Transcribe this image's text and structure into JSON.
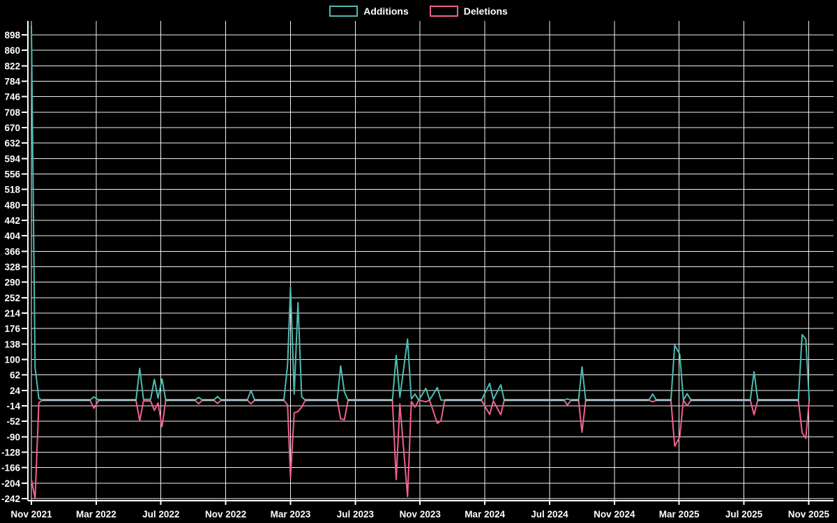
{
  "chart_data": {
    "type": "line",
    "title": "",
    "legend": [
      "Additions",
      "Deletions"
    ],
    "legend_position": "top-center",
    "grid": true,
    "background": "#000000",
    "colors": {
      "additions": "#4dbcb2",
      "deletions": "#f2608f",
      "zero_line": "#a7b9c3",
      "grid": "#f0f0f0",
      "axis": "#ffffff",
      "text": "#ffffff"
    },
    "x_ticks": [
      "Nov 2021",
      "Mar 2022",
      "Jul 2022",
      "Nov 2022",
      "Mar 2023",
      "Jul 2023",
      "Nov 2023",
      "Mar 2024",
      "Jul 2024",
      "Nov 2024",
      "Mar 2025",
      "Jul 2025",
      "Nov 2025"
    ],
    "y_ticks": [
      898,
      860,
      822,
      784,
      746,
      708,
      670,
      632,
      594,
      556,
      518,
      480,
      442,
      404,
      366,
      328,
      290,
      252,
      214,
      176,
      138,
      100,
      62,
      24,
      -14,
      -52,
      -90,
      -128,
      -166,
      -204,
      -242
    ],
    "y_axis": {
      "min": -242,
      "max": 898,
      "step": 38
    },
    "x_axis": {
      "start": "Nov 2021",
      "end": "Nov 2025",
      "tick_interval_months": 4
    },
    "dates": [
      "2021-11-01",
      "2021-11-08",
      "2021-11-15",
      "2021-11-22",
      "2022-02-20",
      "2022-02-27",
      "2022-03-06",
      "2022-05-15",
      "2022-05-22",
      "2022-05-29",
      "2022-06-12",
      "2022-06-19",
      "2022-06-26",
      "2022-07-03",
      "2022-07-10",
      "2022-09-04",
      "2022-09-11",
      "2022-09-18",
      "2022-10-09",
      "2022-10-16",
      "2022-10-23",
      "2022-12-11",
      "2022-12-18",
      "2022-12-25",
      "2023-02-19",
      "2023-02-26",
      "2023-03-01",
      "2023-03-08",
      "2023-03-15",
      "2023-03-22",
      "2023-03-29",
      "2023-05-28",
      "2023-06-04",
      "2023-06-11",
      "2023-06-18",
      "2023-09-10",
      "2023-09-17",
      "2023-09-24",
      "2023-10-08",
      "2023-10-15",
      "2023-10-22",
      "2023-10-29",
      "2023-11-12",
      "2023-11-19",
      "2023-12-03",
      "2023-12-10",
      "2023-12-17",
      "2024-02-25",
      "2024-03-10",
      "2024-03-17",
      "2024-03-31",
      "2024-04-07",
      "2024-07-28",
      "2024-08-04",
      "2024-08-11",
      "2024-08-25",
      "2024-09-01",
      "2024-09-08",
      "2025-01-05",
      "2025-01-12",
      "2025-01-19",
      "2025-02-16",
      "2025-02-23",
      "2025-03-02",
      "2025-03-09",
      "2025-03-16",
      "2025-03-23",
      "2025-07-13",
      "2025-07-20",
      "2025-07-27",
      "2025-10-12",
      "2025-10-19",
      "2025-10-26",
      "2025-11-02"
    ],
    "series": [
      {
        "name": "Additions",
        "values": [
          920,
          80,
          4,
          0,
          0,
          8,
          0,
          0,
          78,
          2,
          2,
          51,
          5,
          52,
          0,
          0,
          7,
          0,
          0,
          9,
          0,
          0,
          24,
          0,
          0,
          87,
          278,
          15,
          240,
          8,
          0,
          0,
          84,
          20,
          0,
          0,
          110,
          7,
          150,
          3,
          15,
          0,
          29,
          0,
          31,
          0,
          0,
          0,
          41,
          2,
          38,
          0,
          0,
          3,
          0,
          0,
          82,
          0,
          0,
          15,
          0,
          0,
          135,
          113,
          0,
          16,
          0,
          0,
          70,
          0,
          0,
          161,
          150,
          0
        ]
      },
      {
        "name": "Deletions",
        "values": [
          -195,
          -242,
          -6,
          0,
          0,
          -20,
          0,
          0,
          -51,
          -2,
          -2,
          -25,
          -7,
          -65,
          0,
          0,
          -9,
          0,
          0,
          -8,
          0,
          0,
          -9,
          0,
          0,
          -12,
          -190,
          -31,
          -28,
          -17,
          0,
          0,
          -46,
          -48,
          0,
          0,
          -195,
          -9,
          -237,
          -3,
          -17,
          0,
          -4,
          0,
          -57,
          -50,
          0,
          0,
          -35,
          -2,
          -36,
          0,
          0,
          -12,
          0,
          0,
          -79,
          0,
          0,
          -4,
          0,
          0,
          -113,
          -91,
          0,
          -14,
          0,
          0,
          -36,
          0,
          0,
          -80,
          -94,
          0
        ]
      }
    ]
  }
}
